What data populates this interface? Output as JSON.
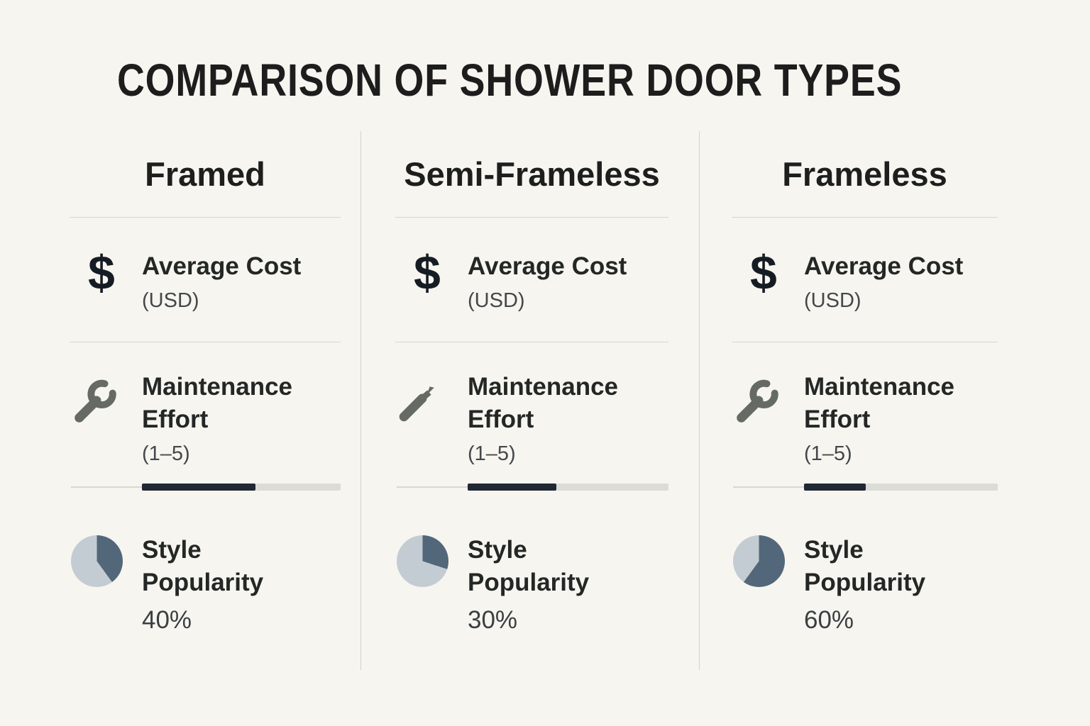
{
  "title": "COMPARISON OF SHOWER DOOR TYPES",
  "metrics": {
    "cost": {
      "label": "Average Cost",
      "sub": "(USD)"
    },
    "maintenance": {
      "label": "Maintenance Effort",
      "sub": "(1–5)"
    },
    "style": {
      "label": "Style Popularity"
    }
  },
  "icons": {
    "dollar_glyph": "$"
  },
  "colors": {
    "background": "#f7f5ef",
    "text_primary": "#1d1f1e",
    "text_secondary": "#43484a",
    "divider": "#d6d4ce",
    "wrench_gray": "#656a64",
    "bar_fill": "#202834",
    "bar_track": "#dcdcd6",
    "pie_dark": "#53677a",
    "pie_light": "#c3ccd2"
  },
  "columns": [
    {
      "name": "Framed",
      "maintenance_fill_percent": 57,
      "style_popularity_percent": 40,
      "style_popularity_label": "40%"
    },
    {
      "name": "Semi-Frameless",
      "maintenance_fill_percent": 44,
      "style_popularity_percent": 30,
      "style_popularity_label": "30%"
    },
    {
      "name": "Frameless",
      "maintenance_fill_percent": 32,
      "style_popularity_percent": 60,
      "style_popularity_label": "60%"
    }
  ],
  "chart_data": {
    "type": "table",
    "title": "COMPARISON OF SHOWER DOOR TYPES",
    "categories": [
      "Framed",
      "Semi-Frameless",
      "Frameless"
    ],
    "rows": [
      {
        "metric": "Average Cost (USD)",
        "display": "icon-only",
        "values": [
          null,
          null,
          null
        ]
      },
      {
        "metric": "Maintenance Effort (1–5)",
        "display": "progress-bar",
        "bar_fill_percent": [
          57,
          44,
          32
        ]
      },
      {
        "metric": "Style Popularity",
        "display": "pie-and-percent",
        "values_percent": [
          40,
          30,
          60
        ]
      }
    ],
    "legend_position": "none",
    "grid": "column-and-row-dividers"
  }
}
